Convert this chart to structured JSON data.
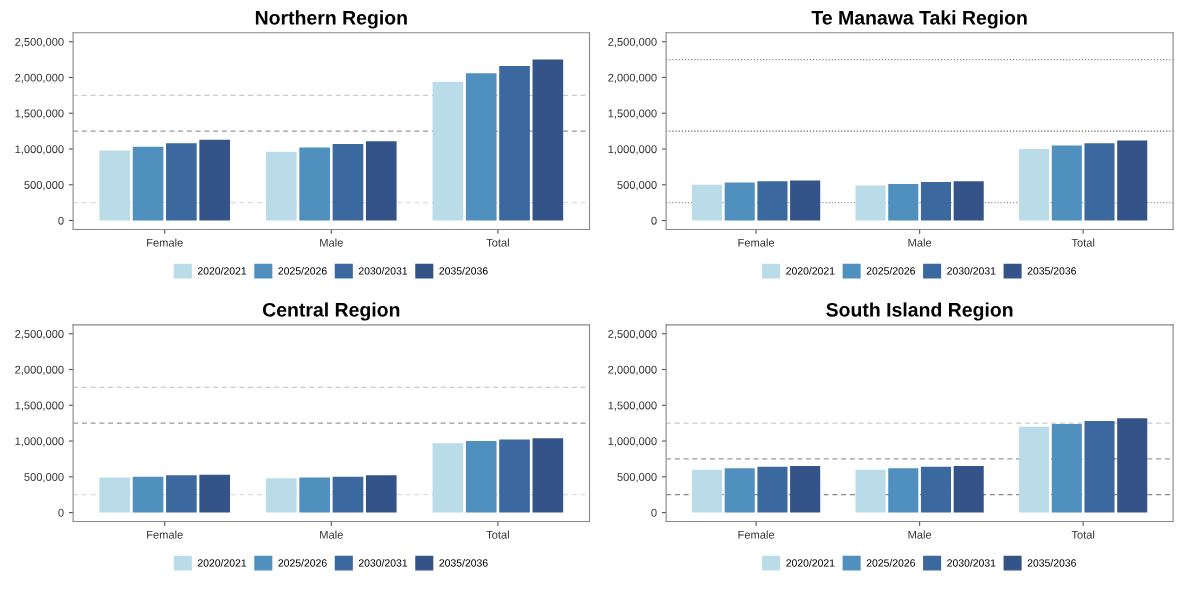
{
  "chart_data": [
    {
      "type": "bar",
      "title": "Northern Region",
      "categories": [
        "Female",
        "Male",
        "Total"
      ],
      "ylim": [
        -125000,
        2625000
      ],
      "yticks": [
        {
          "value": 0,
          "label": "0"
        },
        {
          "value": 500000,
          "label": "500,000"
        },
        {
          "value": 1000000,
          "label": "1,000,000"
        },
        {
          "value": 1500000,
          "label": "1,500,000"
        },
        {
          "value": 2000000,
          "label": "2,000,000"
        },
        {
          "value": 2500000,
          "label": "2,500,000"
        }
      ],
      "legend": "bottom",
      "grid": false,
      "ref_lines": [
        {
          "axis": "y",
          "value": 250000,
          "color": "#dddddd",
          "line_style": "dashed"
        },
        {
          "axis": "y",
          "value": 1250000,
          "color": "#999999",
          "line_style": "dashed"
        },
        {
          "axis": "y",
          "value": 1750000,
          "color": "#cccccc",
          "line_style": "dashed"
        }
      ],
      "series": [
        {
          "name": "2020/2021",
          "color": "#b9dce8",
          "values": [
            980000,
            960000,
            1940000
          ]
        },
        {
          "name": "2025/2026",
          "color": "#4f90bf",
          "values": [
            1030000,
            1020000,
            2060000
          ]
        },
        {
          "name": "2030/2031",
          "color": "#3c68a0",
          "values": [
            1080000,
            1070000,
            2160000
          ]
        },
        {
          "name": "2035/2036",
          "color": "#345388",
          "values": [
            1130000,
            1110000,
            2250000
          ]
        }
      ]
    },
    {
      "type": "bar",
      "title": "Te Manawa Taki Region",
      "categories": [
        "Female",
        "Male",
        "Total"
      ],
      "ylim": [
        -125000,
        2625000
      ],
      "yticks": [
        {
          "value": 0,
          "label": "0"
        },
        {
          "value": 500000,
          "label": "500,000"
        },
        {
          "value": 1000000,
          "label": "1,000,000"
        },
        {
          "value": 1500000,
          "label": "1,500,000"
        },
        {
          "value": 2000000,
          "label": "2,000,000"
        },
        {
          "value": 2500000,
          "label": "2,500,000"
        }
      ],
      "legend": "bottom",
      "grid": false,
      "ref_lines": [
        {
          "axis": "y",
          "value": 250000,
          "color": "#999999",
          "line_style": "dotted"
        },
        {
          "axis": "y",
          "value": 1250000,
          "color": "#666666",
          "line_style": "dotted"
        },
        {
          "axis": "y",
          "value": 2250000,
          "color": "#888888",
          "line_style": "dotted"
        }
      ],
      "series": [
        {
          "name": "2020/2021",
          "color": "#b9dce8",
          "values": [
            500000,
            490000,
            1000000
          ]
        },
        {
          "name": "2025/2026",
          "color": "#4f90bf",
          "values": [
            530000,
            510000,
            1050000
          ]
        },
        {
          "name": "2030/2031",
          "color": "#3c68a0",
          "values": [
            550000,
            540000,
            1080000
          ]
        },
        {
          "name": "2035/2036",
          "color": "#345388",
          "values": [
            560000,
            550000,
            1120000
          ]
        }
      ]
    },
    {
      "type": "bar",
      "title": "Central Region",
      "categories": [
        "Female",
        "Male",
        "Total"
      ],
      "ylim": [
        -125000,
        2625000
      ],
      "yticks": [
        {
          "value": 0,
          "label": "0"
        },
        {
          "value": 500000,
          "label": "500,000"
        },
        {
          "value": 1000000,
          "label": "1,000,000"
        },
        {
          "value": 1500000,
          "label": "1,500,000"
        },
        {
          "value": 2000000,
          "label": "2,000,000"
        },
        {
          "value": 2500000,
          "label": "2,500,000"
        }
      ],
      "legend": "bottom",
      "grid": false,
      "ref_lines": [
        {
          "axis": "y",
          "value": 250000,
          "color": "#dddddd",
          "line_style": "dashed"
        },
        {
          "axis": "y",
          "value": 1250000,
          "color": "#999999",
          "line_style": "dashed"
        },
        {
          "axis": "y",
          "value": 1750000,
          "color": "#cccccc",
          "line_style": "dashed"
        }
      ],
      "series": [
        {
          "name": "2020/2021",
          "color": "#b9dce8",
          "values": [
            490000,
            480000,
            970000
          ]
        },
        {
          "name": "2025/2026",
          "color": "#4f90bf",
          "values": [
            500000,
            490000,
            1000000
          ]
        },
        {
          "name": "2030/2031",
          "color": "#3c68a0",
          "values": [
            520000,
            500000,
            1020000
          ]
        },
        {
          "name": "2035/2036",
          "color": "#345388",
          "values": [
            530000,
            520000,
            1040000
          ]
        }
      ]
    },
    {
      "type": "bar",
      "title": "South Island Region",
      "categories": [
        "Female",
        "Male",
        "Total"
      ],
      "ylim": [
        -125000,
        2625000
      ],
      "yticks": [
        {
          "value": 0,
          "label": "0"
        },
        {
          "value": 500000,
          "label": "500,000"
        },
        {
          "value": 1000000,
          "label": "1,000,000"
        },
        {
          "value": 1500000,
          "label": "1,500,000"
        },
        {
          "value": 2000000,
          "label": "2,000,000"
        },
        {
          "value": 2500000,
          "label": "2,500,000"
        }
      ],
      "legend": "bottom",
      "grid": false,
      "ref_lines": [
        {
          "axis": "y",
          "value": 250000,
          "color": "#888888",
          "line_style": "dashed"
        },
        {
          "axis": "y",
          "value": 750000,
          "color": "#999999",
          "line_style": "dashed"
        },
        {
          "axis": "y",
          "value": 1250000,
          "color": "#cccccc",
          "line_style": "dashed"
        }
      ],
      "series": [
        {
          "name": "2020/2021",
          "color": "#b9dce8",
          "values": [
            600000,
            600000,
            1200000
          ]
        },
        {
          "name": "2025/2026",
          "color": "#4f90bf",
          "values": [
            620000,
            620000,
            1240000
          ]
        },
        {
          "name": "2030/2031",
          "color": "#3c68a0",
          "values": [
            640000,
            640000,
            1280000
          ]
        },
        {
          "name": "2035/2036",
          "color": "#345388",
          "values": [
            650000,
            650000,
            1320000
          ]
        }
      ]
    }
  ]
}
